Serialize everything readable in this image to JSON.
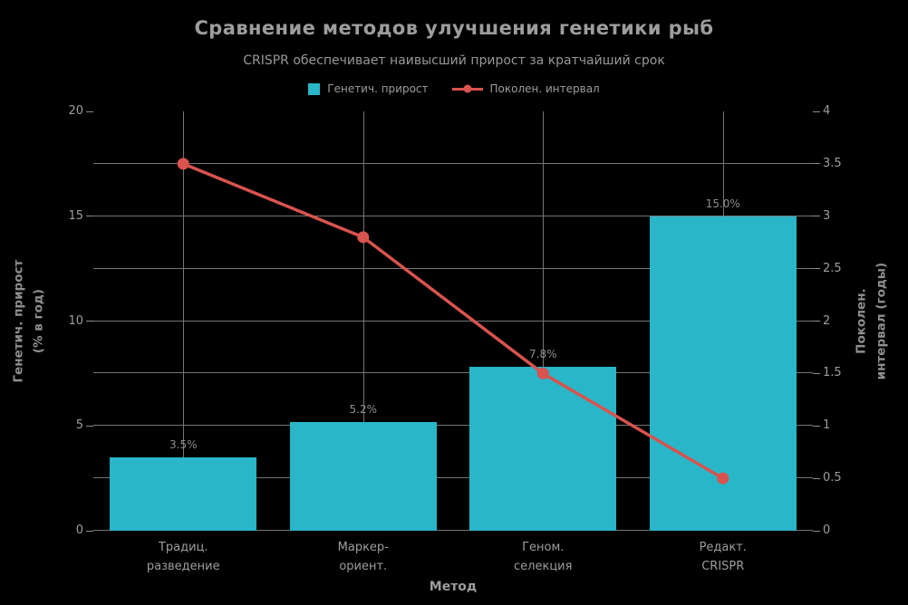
{
  "title": "Сравнение методов улучшения генетики рыб",
  "subtitle": "CRISPR обеспечивает наивысший прирост за кратчайший срок",
  "colors": {
    "background": "#000000",
    "bar": "#29b6c8",
    "line": "#d9534f",
    "grid": "#757575",
    "text": "#9d9d9d"
  },
  "chart_data": {
    "type": "bar",
    "title": "Сравнение методов улучшения генетики рыб",
    "subtitle": "CRISPR обеспечивает наивысший прирост за кратчайший срок",
    "xlabel": "Метод",
    "ylabel_left": "Генетич. прирост\n(% в год)",
    "ylabel_right": "Поколен.\nинтервал (годы)",
    "categories": [
      "Традиц.\nразведение",
      "Маркер-\nориент.",
      "Геном.\nселекция",
      "Редакт.\nCRISPR"
    ],
    "series": [
      {
        "name": "Генетич. прирост",
        "type": "bar",
        "axis": "left",
        "color": "#29b6c8",
        "values": [
          3.5,
          5.2,
          7.8,
          15.0
        ],
        "labels": [
          "3.5%",
          "5.2%",
          "7.8%",
          "15.0%"
        ]
      },
      {
        "name": "Поколен. интервал",
        "type": "line",
        "axis": "right",
        "color": "#d9534f",
        "values": [
          3.5,
          2.8,
          1.5,
          0.5
        ]
      }
    ],
    "yaxis_left": {
      "min": 0,
      "max": 20,
      "ticks": [
        "0",
        "5",
        "10",
        "15",
        "20"
      ],
      "grid_values": [
        0,
        2.5,
        5,
        7.5,
        10,
        12.5,
        15,
        17.5
      ]
    },
    "yaxis_right": {
      "min": 0,
      "max": 4,
      "ticks": [
        "0",
        "0.5",
        "1",
        "1.5",
        "2",
        "2.5",
        "3",
        "3.5",
        "4"
      ]
    },
    "grid": true,
    "legend_position": "top",
    "bar_width_pct": 20.4
  }
}
